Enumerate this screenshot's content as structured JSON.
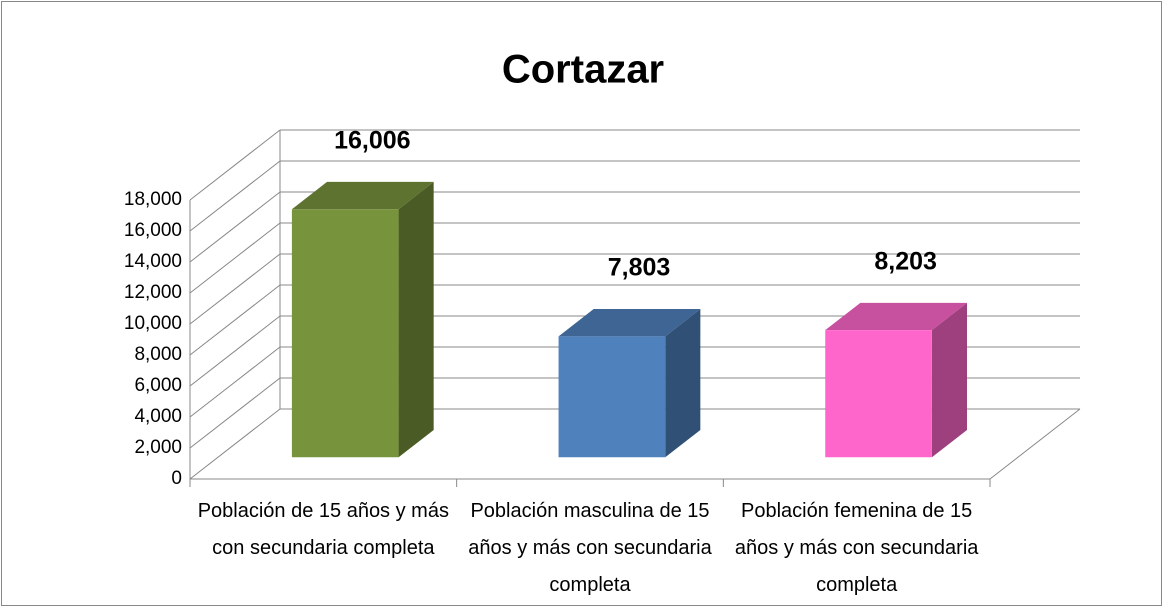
{
  "chart_data": {
    "type": "bar3d",
    "title": "Cortazar",
    "categories": [
      "Población de 15 años y más con secundaria completa",
      "Población masculina de 15 años y más con secundaria completa",
      "Población femenina de 15 años y más con secundaria completa"
    ],
    "values": [
      16006,
      7803,
      8203
    ],
    "value_labels": [
      "16,006",
      "7,803",
      "8,203"
    ],
    "colors": [
      "#77933c",
      "#4f81bd",
      "#ff66cc"
    ],
    "ylim": [
      0,
      18000
    ],
    "yticks": [
      {
        "value": 0,
        "label": "0"
      },
      {
        "value": 2000,
        "label": "2,000"
      },
      {
        "value": 4000,
        "label": "4,000"
      },
      {
        "value": 6000,
        "label": "6,000"
      },
      {
        "value": 8000,
        "label": "8,000"
      },
      {
        "value": 10000,
        "label": "10,000"
      },
      {
        "value": 12000,
        "label": "12,000"
      },
      {
        "value": 14000,
        "label": "14,000"
      },
      {
        "value": 16000,
        "label": "16,000"
      },
      {
        "value": 18000,
        "label": "18,000"
      }
    ],
    "grid": true
  }
}
